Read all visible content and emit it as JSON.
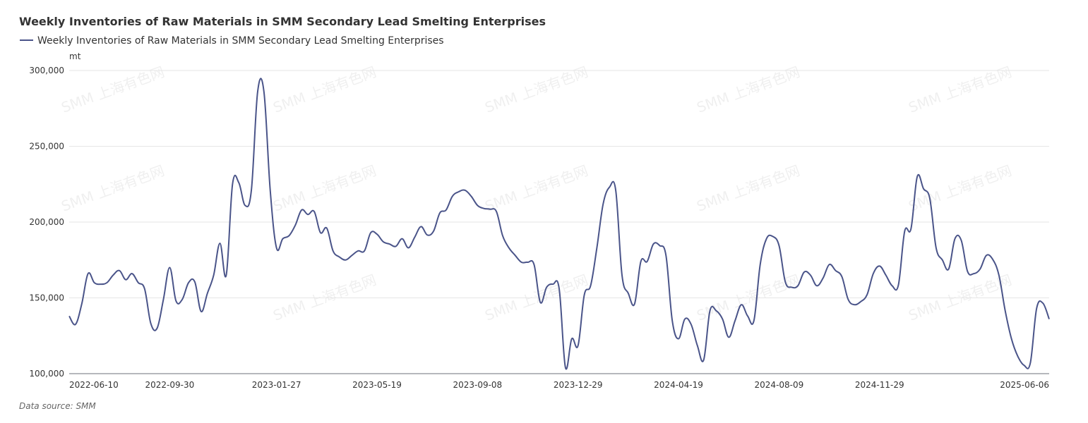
{
  "chart_data": {
    "type": "line",
    "title": "Weekly Inventories of Raw Materials in SMM Secondary Lead Smelting Enterprises",
    "y_unit": "mt",
    "source": "Data source:  SMM",
    "watermark": "SMM 上海有色网",
    "categories": [
      "2022-06-10",
      null,
      null,
      null,
      null,
      null,
      null,
      null,
      null,
      null,
      null,
      null,
      null,
      null,
      null,
      null,
      "2022-09-30",
      null,
      null,
      null,
      null,
      null,
      null,
      null,
      null,
      null,
      null,
      null,
      null,
      null,
      null,
      null,
      null,
      "2023-01-27",
      null,
      null,
      null,
      null,
      null,
      null,
      null,
      null,
      null,
      null,
      null,
      null,
      null,
      null,
      null,
      "2023-05-19",
      null,
      null,
      null,
      null,
      null,
      null,
      null,
      null,
      null,
      null,
      null,
      null,
      null,
      null,
      null,
      "2023-09-08",
      null,
      null,
      null,
      null,
      null,
      null,
      null,
      null,
      null,
      null,
      null,
      null,
      null,
      null,
      null,
      "2023-12-29",
      null,
      null,
      null,
      null,
      null,
      null,
      null,
      null,
      null,
      null,
      null,
      null,
      null,
      null,
      null,
      "2024-04-19",
      null,
      null,
      null,
      null,
      null,
      null,
      null,
      null,
      null,
      null,
      null,
      null,
      null,
      null,
      null,
      "2024-08-09",
      null,
      null,
      null,
      null,
      null,
      null,
      null,
      null,
      null,
      null,
      null,
      null,
      null,
      null,
      null,
      "2024-11-29",
      null,
      null,
      null,
      null,
      null,
      null,
      null,
      null,
      null,
      null,
      null,
      null,
      null,
      null,
      null,
      null,
      null,
      null,
      null,
      null,
      null,
      null,
      null,
      null,
      null,
      null,
      "2025-06-06"
    ],
    "series": [
      {
        "name": "Weekly Inventories of Raw Materials in SMM Secondary Lead Smelting Enterprises",
        "color": "#4a5489",
        "values": [
          138000,
          132500,
          146000,
          166000,
          160000,
          159000,
          160000,
          165000,
          168000,
          162000,
          166000,
          160000,
          156000,
          133000,
          130000,
          149000,
          170000,
          148000,
          149000,
          160000,
          160500,
          141000,
          153000,
          165000,
          186000,
          165000,
          225000,
          226000,
          211000,
          221000,
          286000,
          286000,
          221000,
          183000,
          189000,
          191000,
          198000,
          208000,
          205000,
          207000,
          193000,
          196000,
          181000,
          177000,
          175000,
          178000,
          181000,
          181000,
          193000,
          192000,
          187000,
          185500,
          184000,
          189000,
          183000,
          190000,
          197000,
          191500,
          194000,
          206000,
          208000,
          217000,
          220000,
          221000,
          217000,
          211000,
          209000,
          208500,
          207000,
          191000,
          183000,
          178000,
          173500,
          173500,
          172000,
          147000,
          157000,
          159000,
          156000,
          104000,
          123000,
          118500,
          152000,
          158000,
          183000,
          212000,
          223000,
          221000,
          165000,
          153000,
          146000,
          174000,
          174000,
          185500,
          184500,
          178000,
          135000,
          123000,
          136000,
          132500,
          118500,
          109000,
          141500,
          141500,
          136000,
          124000,
          135000,
          145500,
          138000,
          135000,
          172000,
          189000,
          190500,
          184500,
          160500,
          157000,
          158000,
          167000,
          165000,
          158000,
          163000,
          172000,
          168000,
          164000,
          149000,
          145500,
          147500,
          152000,
          166000,
          171000,
          165000,
          158000,
          158500,
          194000,
          195500,
          230000,
          222000,
          215500,
          183000,
          175000,
          169000,
          189000,
          188000,
          167500,
          166000,
          169000,
          178000,
          175500,
          165000,
          141500,
          123000,
          111500,
          105500,
          107000,
          143000,
          146500,
          136000
        ]
      }
    ],
    "ylim": [
      100000,
      300000
    ],
    "yticks": [
      {
        "value": 100000,
        "label": "100,000"
      },
      {
        "value": 150000,
        "label": "150,000"
      },
      {
        "value": 200000,
        "label": "200,000"
      },
      {
        "value": 250000,
        "label": "250,000"
      },
      {
        "value": 300000,
        "label": "300,000"
      }
    ],
    "grid": true
  }
}
